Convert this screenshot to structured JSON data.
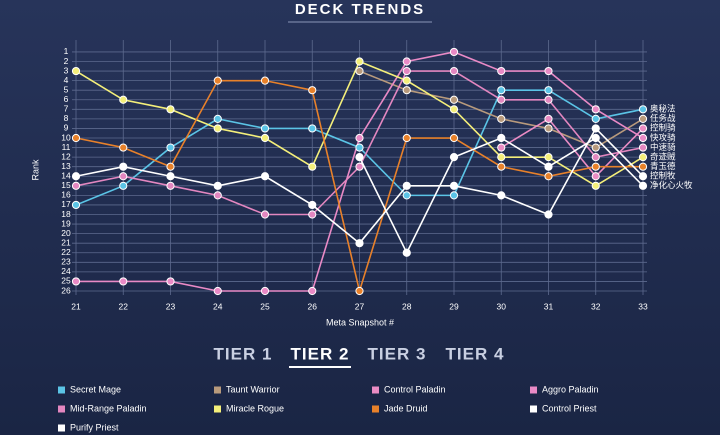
{
  "chart_data": {
    "type": "line",
    "title": "DECK TRENDS",
    "x_label": "Meta Snapshot #",
    "y_label": "Rank",
    "x": [
      21,
      22,
      23,
      24,
      25,
      26,
      27,
      28,
      29,
      30,
      31,
      32,
      33
    ],
    "xlim": [
      21,
      33
    ],
    "xticks": [
      21,
      22,
      23,
      24,
      25,
      26,
      27,
      28,
      29,
      30,
      31,
      32,
      33
    ],
    "ylim": [
      0,
      26
    ],
    "y_inverted": true,
    "yticks": [
      1,
      2,
      3,
      4,
      5,
      6,
      7,
      8,
      9,
      10,
      11,
      12,
      13,
      14,
      15,
      16,
      17,
      18,
      19,
      20,
      21,
      22,
      23,
      24,
      25,
      26
    ],
    "grid": true,
    "tabs": [
      "TIER 1",
      "TIER 2",
      "TIER 3",
      "TIER 4"
    ],
    "active_tab": 1,
    "series": [
      {
        "name": "Secret Mage",
        "label": "奥秘法",
        "color": "#5bc4e6",
        "values": [
          17,
          15,
          11,
          8,
          9,
          9,
          11,
          16,
          16,
          5,
          5,
          8,
          7
        ]
      },
      {
        "name": "Taunt Warrior",
        "label": "任务战",
        "color": "#b89a7c",
        "values": [
          null,
          null,
          null,
          null,
          null,
          null,
          3,
          5,
          6,
          8,
          9,
          11,
          8
        ]
      },
      {
        "name": "Control Paladin",
        "label": "控制骑",
        "color": "#ea8cc4",
        "values": [
          null,
          null,
          null,
          null,
          null,
          null,
          null,
          null,
          null,
          11,
          8,
          14,
          9
        ]
      },
      {
        "name": "Aggro Paladin",
        "label": "快攻骑",
        "color": "#e98ac6",
        "values": [
          25,
          25,
          25,
          26,
          26,
          26,
          10,
          2,
          1,
          3,
          3,
          7,
          10
        ]
      },
      {
        "name": "Mid-Range Paladin",
        "label": "中速骑",
        "color": "#e387c0",
        "values": [
          15,
          14,
          15,
          16,
          18,
          18,
          13,
          3,
          3,
          6,
          6,
          12,
          11
        ]
      },
      {
        "name": "Miracle Rogue",
        "label": "奇迹贼",
        "color": "#f4ef7a",
        "values": [
          3,
          6,
          7,
          9,
          10,
          13,
          2,
          4,
          7,
          12,
          12,
          15,
          12
        ]
      },
      {
        "name": "Jade Druid",
        "label": "青玉德",
        "color": "#e8812a",
        "values": [
          10,
          11,
          13,
          4,
          4,
          5,
          26,
          10,
          10,
          13,
          14,
          13,
          13
        ]
      },
      {
        "name": "Control Priest",
        "label": "控制牧",
        "color": "#ffffff",
        "values": [
          14,
          13,
          14,
          15,
          14,
          17,
          21,
          15,
          15,
          16,
          18,
          9,
          14
        ]
      },
      {
        "name": "Purify Priest",
        "label": "净化心火牧",
        "color": "#ffffff",
        "values": [
          null,
          null,
          null,
          null,
          null,
          null,
          12,
          22,
          12,
          10,
          13,
          10,
          15
        ]
      }
    ]
  }
}
